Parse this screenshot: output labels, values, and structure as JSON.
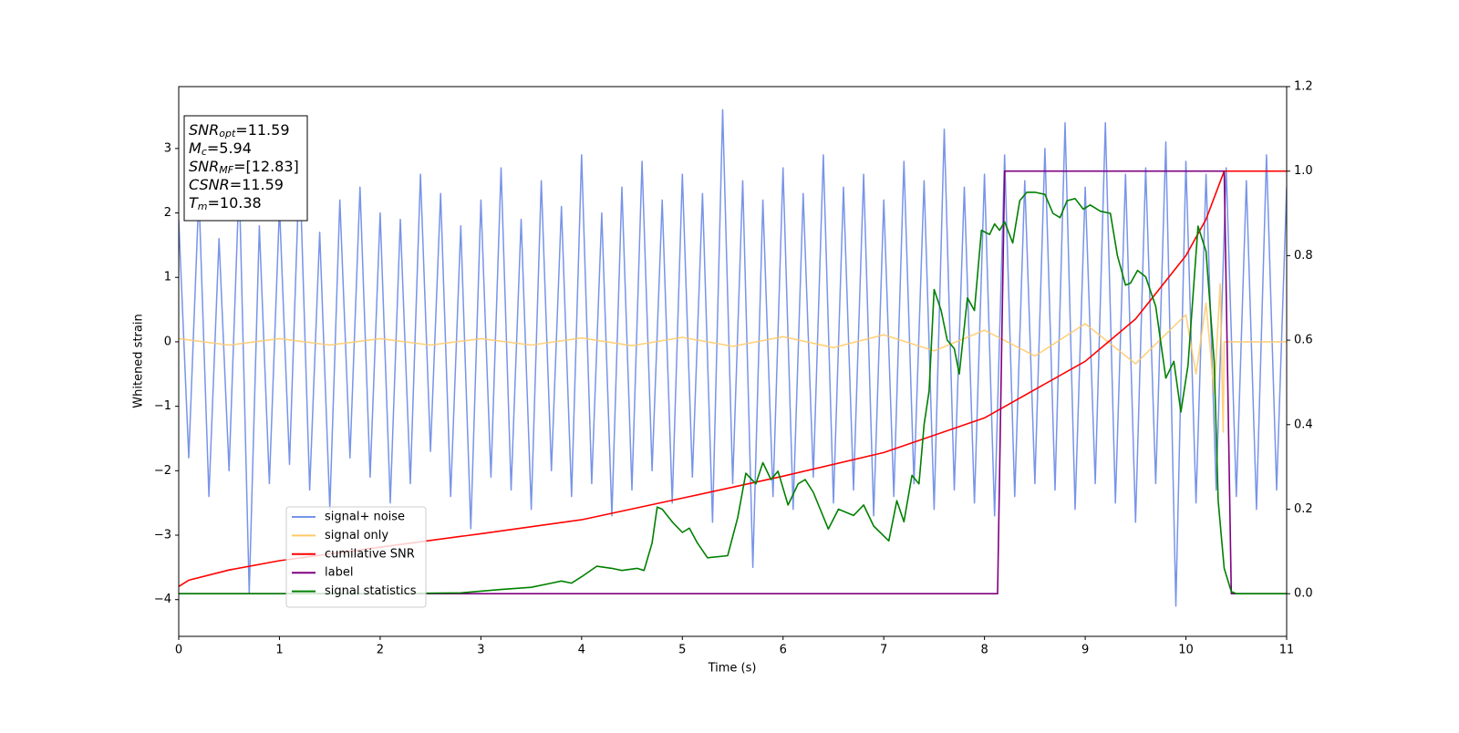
{
  "chart_data": {
    "type": "line",
    "xlabel": "Time (s)",
    "ylabel": "Whitened strain",
    "xlim": [
      0,
      11
    ],
    "xticks": [
      0,
      1,
      2,
      3,
      4,
      5,
      6,
      7,
      8,
      9,
      10,
      11
    ],
    "ylim": [
      -4.57,
      3.96
    ],
    "yticks": [
      {
        "value": -4,
        "label": "−4"
      },
      {
        "value": -3,
        "label": "−3"
      },
      {
        "value": -2,
        "label": "−2"
      },
      {
        "value": -1,
        "label": "−1"
      },
      0,
      1,
      2,
      3
    ],
    "y2lim": [
      -0.101,
      1.2
    ],
    "y2ticks": [
      {
        "value": 0,
        "label": "0.0"
      },
      0.2,
      0.4,
      0.6,
      0.8,
      {
        "value": 1,
        "label": "1.0"
      },
      1.2
    ],
    "legend": "lower left",
    "annotations": [
      {
        "symbol": "SNR",
        "sub": "opt",
        "text": "=11.59"
      },
      {
        "symbol": "M",
        "sub": "c",
        "text": "=5.94"
      },
      {
        "symbol": "SNR",
        "sub": "MF",
        "text": "=[12.83]"
      },
      {
        "symbol": "CSNR",
        "sub": null,
        "text": "=11.59"
      },
      {
        "symbol": "T",
        "sub": "m",
        "text": "=10.38"
      }
    ],
    "series": [
      {
        "name": "signal+ noise",
        "color": "#7894e8",
        "x": [
          0,
          0.1,
          0.2,
          0.3,
          0.4,
          0.5,
          0.6,
          0.7,
          0.8,
          0.9,
          1,
          1.1,
          1.2,
          1.3,
          1.4,
          1.5,
          1.6,
          1.7,
          1.8,
          1.9,
          2,
          2.1,
          2.2,
          2.3,
          2.4,
          2.5,
          2.6,
          2.7,
          2.8,
          2.9,
          3,
          3.1,
          3.2,
          3.3,
          3.4,
          3.5,
          3.6,
          3.7,
          3.8,
          3.9,
          4,
          4.1,
          4.2,
          4.3,
          4.4,
          4.5,
          4.6,
          4.7,
          4.8,
          4.9,
          5,
          5.1,
          5.2,
          5.3,
          5.4,
          5.5,
          5.6,
          5.7,
          5.8,
          5.9,
          6,
          6.1,
          6.2,
          6.3,
          6.4,
          6.5,
          6.6,
          6.7,
          6.8,
          6.9,
          7,
          7.1,
          7.2,
          7.3,
          7.4,
          7.5,
          7.6,
          7.7,
          7.8,
          7.9,
          8,
          8.1,
          8.2,
          8.3,
          8.4,
          8.5,
          8.6,
          8.7,
          8.8,
          8.9,
          9,
          9.1,
          9.2,
          9.3,
          9.4,
          9.5,
          9.6,
          9.7,
          9.8,
          9.9,
          10,
          10.1,
          10.2,
          10.3,
          10.4,
          10.5,
          10.6,
          10.7,
          10.8,
          10.9,
          11
        ],
        "values": [
          1.9,
          -1.8,
          2.3,
          -2.4,
          1.6,
          -2.0,
          2.5,
          -3.9,
          1.8,
          -2.2,
          2.1,
          -1.9,
          2.8,
          -2.3,
          1.7,
          -2.6,
          2.2,
          -1.8,
          2.4,
          -2.1,
          2.0,
          -2.5,
          1.9,
          -2.2,
          2.6,
          -1.7,
          2.3,
          -2.4,
          1.8,
          -2.9,
          2.2,
          -2.1,
          2.7,
          -2.3,
          1.9,
          -2.6,
          2.5,
          -2.0,
          2.1,
          -2.4,
          2.9,
          -2.2,
          2.0,
          -2.7,
          2.4,
          -2.3,
          2.8,
          -2.0,
          2.2,
          -2.5,
          2.6,
          -2.1,
          2.3,
          -2.8,
          3.6,
          -2.2,
          2.5,
          -3.5,
          2.2,
          -2.4,
          2.7,
          -2.6,
          2.3,
          -2.1,
          2.9,
          -2.5,
          2.4,
          -2.3,
          2.6,
          -2.7,
          2.2,
          -2.4,
          2.8,
          -2.2,
          2.5,
          -2.6,
          3.3,
          -2.3,
          2.4,
          -2.5,
          2.6,
          -2.7,
          2.9,
          -2.4,
          2.5,
          -2.2,
          3.0,
          -2.3,
          3.4,
          -2.6,
          2.4,
          -2.2,
          3.4,
          -2.5,
          2.6,
          -2.8,
          2.7,
          -2.2,
          3.1,
          -4.1,
          2.8,
          -2.5,
          2.6,
          -2.3,
          2.7,
          -2.4,
          2.5,
          -2.6,
          2.9,
          -2.3,
          2.4
        ]
      },
      {
        "name": "signal only",
        "color": "#ffc966",
        "x": [
          0,
          0.5,
          1,
          1.5,
          2,
          2.5,
          3,
          3.5,
          4,
          4.5,
          5,
          5.5,
          6,
          6.5,
          7,
          7.5,
          8,
          8.5,
          9,
          9.5,
          10,
          10.1,
          10.2,
          10.28,
          10.34,
          10.37,
          10.38,
          11
        ],
        "values": [
          0.05,
          -0.05,
          0.05,
          -0.05,
          0.05,
          -0.05,
          0.05,
          -0.05,
          0.06,
          -0.06,
          0.07,
          -0.07,
          0.08,
          -0.09,
          0.11,
          -0.14,
          0.18,
          -0.22,
          0.28,
          -0.34,
          0.42,
          -0.5,
          0.6,
          -0.8,
          0.9,
          -1.4,
          0,
          0
        ]
      },
      {
        "name": "cumilative SNR",
        "color": "#ff0000",
        "axis": "y2",
        "x": [
          0,
          0.1,
          0.5,
          1,
          2,
          3,
          4,
          5,
          6,
          7,
          8,
          9,
          9.5,
          10,
          10.2,
          10.38,
          11
        ],
        "values": [
          0.017,
          0.032,
          0.056,
          0.078,
          0.11,
          0.142,
          0.175,
          0.226,
          0.278,
          0.334,
          0.416,
          0.55,
          0.65,
          0.8,
          0.886,
          1.0,
          1.0
        ]
      },
      {
        "name": "label",
        "color": "#800080",
        "axis": "y2",
        "x": [
          0,
          8.13,
          8.2,
          10.38,
          10.45,
          11
        ],
        "values": [
          0,
          0,
          1,
          1,
          0,
          0
        ]
      },
      {
        "name": "signal statistics",
        "color": "#008000",
        "axis": "y2",
        "x": [
          0,
          2,
          2.8,
          3.2,
          3.5,
          3.7,
          3.8,
          3.9,
          4.0,
          4.15,
          4.3,
          4.4,
          4.55,
          4.62,
          4.7,
          4.75,
          4.8,
          4.9,
          5.0,
          5.07,
          5.15,
          5.25,
          5.45,
          5.55,
          5.63,
          5.73,
          5.8,
          5.88,
          5.95,
          6.05,
          6.15,
          6.22,
          6.3,
          6.45,
          6.55,
          6.7,
          6.8,
          6.9,
          7.05,
          7.13,
          7.2,
          7.28,
          7.35,
          7.4,
          7.45,
          7.5,
          7.57,
          7.63,
          7.7,
          7.75,
          7.83,
          7.9,
          7.97,
          8.05,
          8.1,
          8.15,
          8.2,
          8.28,
          8.35,
          8.42,
          8.5,
          8.6,
          8.68,
          8.75,
          8.82,
          8.9,
          8.98,
          9.05,
          9.15,
          9.25,
          9.32,
          9.4,
          9.45,
          9.52,
          9.6,
          9.7,
          9.8,
          9.88,
          9.95,
          10.02,
          10.12,
          10.2,
          10.28,
          10.32,
          10.38,
          10.45,
          10.5,
          11
        ],
        "values": [
          0,
          0,
          0.002,
          0.01,
          0.015,
          0.025,
          0.03,
          0.025,
          0.04,
          0.065,
          0.06,
          0.055,
          0.06,
          0.055,
          0.12,
          0.205,
          0.2,
          0.17,
          0.145,
          0.155,
          0.12,
          0.085,
          0.09,
          0.18,
          0.285,
          0.26,
          0.31,
          0.27,
          0.29,
          0.21,
          0.26,
          0.27,
          0.24,
          0.153,
          0.2,
          0.185,
          0.21,
          0.16,
          0.125,
          0.22,
          0.17,
          0.28,
          0.26,
          0.4,
          0.48,
          0.72,
          0.67,
          0.6,
          0.58,
          0.52,
          0.7,
          0.67,
          0.86,
          0.85,
          0.875,
          0.86,
          0.88,
          0.83,
          0.93,
          0.95,
          0.95,
          0.945,
          0.9,
          0.89,
          0.93,
          0.935,
          0.91,
          0.92,
          0.905,
          0.9,
          0.8,
          0.73,
          0.735,
          0.765,
          0.75,
          0.68,
          0.51,
          0.55,
          0.43,
          0.54,
          0.87,
          0.81,
          0.55,
          0.22,
          0.06,
          0.005,
          0,
          0
        ]
      }
    ]
  }
}
